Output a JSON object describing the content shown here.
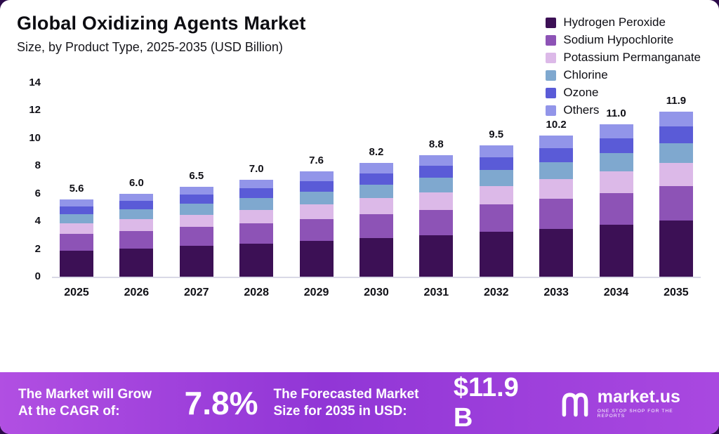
{
  "header": {
    "title": "Global Oxidizing Agents Market",
    "subtitle": "Size, by Product Type, 2025-2035 (USD Billion)"
  },
  "chart_data": {
    "type": "bar",
    "stacked": true,
    "title": "Global Oxidizing Agents Market Size, by Product Type, 2025-2035 (USD Billion)",
    "categories": [
      "2025",
      "2026",
      "2027",
      "2028",
      "2029",
      "2030",
      "2031",
      "2032",
      "2033",
      "2034",
      "2035"
    ],
    "totals": [
      5.6,
      6.0,
      6.5,
      7.0,
      7.6,
      8.2,
      8.8,
      9.5,
      10.2,
      11.0,
      11.9
    ],
    "series": [
      {
        "name": "Hydrogen Peroxide",
        "color": "#3c1055",
        "values": [
          1.9,
          2.04,
          2.21,
          2.38,
          2.58,
          2.79,
          2.99,
          3.23,
          3.47,
          3.74,
          4.05
        ]
      },
      {
        "name": "Sodium Hypochlorite",
        "color": "#8d53b6",
        "values": [
          1.18,
          1.26,
          1.37,
          1.47,
          1.6,
          1.72,
          1.85,
          2.0,
          2.14,
          2.31,
          2.5
        ]
      },
      {
        "name": "Potassium Permanganate",
        "color": "#dcb9e8",
        "values": [
          0.78,
          0.84,
          0.91,
          0.98,
          1.06,
          1.15,
          1.23,
          1.33,
          1.43,
          1.54,
          1.67
        ]
      },
      {
        "name": "Chlorine",
        "color": "#7fa8cf",
        "values": [
          0.67,
          0.72,
          0.78,
          0.84,
          0.91,
          0.98,
          1.06,
          1.14,
          1.22,
          1.32,
          1.43
        ]
      },
      {
        "name": "Ozone",
        "color": "#5a5bd7",
        "values": [
          0.56,
          0.6,
          0.65,
          0.7,
          0.76,
          0.82,
          0.88,
          0.95,
          1.02,
          1.1,
          1.19
        ]
      },
      {
        "name": "Others",
        "color": "#9295e9",
        "values": [
          0.5,
          0.54,
          0.59,
          0.63,
          0.68,
          0.74,
          0.79,
          0.86,
          0.92,
          0.99,
          1.07
        ]
      }
    ],
    "xlabel": "",
    "ylabel": "",
    "ylim": [
      0,
      14
    ],
    "yticks": [
      0,
      2,
      4,
      6,
      8,
      10,
      12,
      14
    ],
    "grid": false,
    "legend_position": "top-right"
  },
  "footer": {
    "cagr_label": "The Market will Grow At the CAGR of:",
    "cagr_value": "7.8%",
    "forecast_label": "The Forecasted Market Size for 2035 in USD:",
    "forecast_value": "$11.9 B",
    "brand": "market.us",
    "brand_tagline": "ONE STOP SHOP FOR THE REPORTS"
  }
}
